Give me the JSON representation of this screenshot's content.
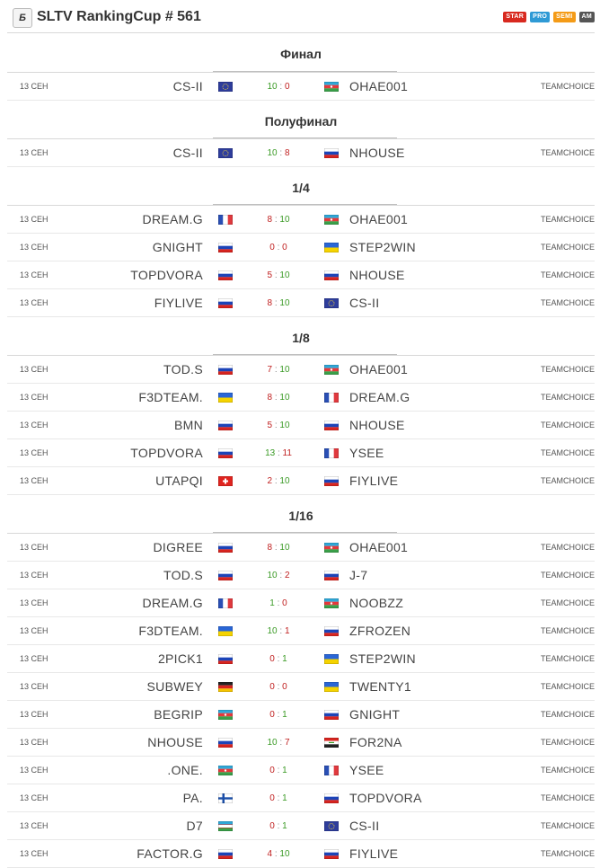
{
  "header": {
    "logo": "Б",
    "title": "SLTV RankingCup # 561",
    "badges": [
      "STAR",
      "PRO",
      "SEMI",
      "AM"
    ]
  },
  "stages": [
    {
      "name": "Финал",
      "matches": [
        {
          "date": "13 СЕН",
          "team1": "CS-II",
          "flag1": "eu",
          "s1": "10",
          "s2": "0",
          "flag2": "az",
          "team2": "OHAE001",
          "source": "TEAMCHOICE"
        }
      ]
    },
    {
      "name": "Полуфинал",
      "matches": [
        {
          "date": "13 СЕН",
          "team1": "CS-II",
          "flag1": "eu",
          "s1": "10",
          "s2": "8",
          "flag2": "ru",
          "team2": "NHOUSE",
          "source": "TEAMCHOICE"
        }
      ]
    },
    {
      "name": "1/4",
      "matches": [
        {
          "date": "13 СЕН",
          "team1": "DREAM.G",
          "flag1": "fr",
          "s1": "8",
          "s2": "10",
          "flag2": "az",
          "team2": "OHAE001",
          "source": "TEAMCHOICE"
        },
        {
          "date": "13 СЕН",
          "team1": "GNIGHT",
          "flag1": "ru",
          "s1": "0",
          "s2": "0",
          "flag2": "ua",
          "team2": "STEP2WIN",
          "source": "TEAMCHOICE"
        },
        {
          "date": "13 СЕН",
          "team1": "TOPDVORA",
          "flag1": "ru",
          "s1": "5",
          "s2": "10",
          "flag2": "ru",
          "team2": "NHOUSE",
          "source": "TEAMCHOICE"
        },
        {
          "date": "13 СЕН",
          "team1": "FIYLIVE",
          "flag1": "ru",
          "s1": "8",
          "s2": "10",
          "flag2": "eu",
          "team2": "CS-II",
          "source": "TEAMCHOICE"
        }
      ]
    },
    {
      "name": "1/8",
      "matches": [
        {
          "date": "13 СЕН",
          "team1": "TOD.S",
          "flag1": "ru",
          "s1": "7",
          "s2": "10",
          "flag2": "az",
          "team2": "OHAE001",
          "source": "TEAMCHOICE"
        },
        {
          "date": "13 СЕН",
          "team1": "F3DTEAM.",
          "flag1": "ua",
          "s1": "8",
          "s2": "10",
          "flag2": "fr",
          "team2": "DREAM.G",
          "source": "TEAMCHOICE"
        },
        {
          "date": "13 СЕН",
          "team1": "BMN",
          "flag1": "ru",
          "s1": "5",
          "s2": "10",
          "flag2": "ru",
          "team2": "NHOUSE",
          "source": "TEAMCHOICE"
        },
        {
          "date": "13 СЕН",
          "team1": "TOPDVORA",
          "flag1": "ru",
          "s1": "13",
          "s2": "11",
          "flag2": "fr",
          "team2": "YSEE",
          "source": "TEAMCHOICE"
        },
        {
          "date": "13 СЕН",
          "team1": "UTAPQI",
          "flag1": "ch",
          "s1": "2",
          "s2": "10",
          "flag2": "ru",
          "team2": "FIYLIVE",
          "source": "TEAMCHOICE"
        }
      ]
    },
    {
      "name": "1/16",
      "matches": [
        {
          "date": "13 СЕН",
          "team1": "DIGREE",
          "flag1": "ru",
          "s1": "8",
          "s2": "10",
          "flag2": "az",
          "team2": "OHAE001",
          "source": "TEAMCHOICE"
        },
        {
          "date": "13 СЕН",
          "team1": "TOD.S",
          "flag1": "ru",
          "s1": "10",
          "s2": "2",
          "flag2": "ru",
          "team2": "J-7",
          "source": "TEAMCHOICE"
        },
        {
          "date": "13 СЕН",
          "team1": "DREAM.G",
          "flag1": "fr",
          "s1": "1",
          "s2": "0",
          "flag2": "az",
          "team2": "NOOBZZ",
          "source": "TEAMCHOICE"
        },
        {
          "date": "13 СЕН",
          "team1": "F3DTEAM.",
          "flag1": "ua",
          "s1": "10",
          "s2": "1",
          "flag2": "ru",
          "team2": "ZFROZEN",
          "source": "TEAMCHOICE"
        },
        {
          "date": "13 СЕН",
          "team1": "2PICK1",
          "flag1": "ru",
          "s1": "0",
          "s2": "1",
          "flag2": "ua",
          "team2": "STEP2WIN",
          "source": "TEAMCHOICE"
        },
        {
          "date": "13 СЕН",
          "team1": "SUBWEY",
          "flag1": "de",
          "s1": "0",
          "s2": "0",
          "flag2": "ua",
          "team2": "TWENTY1",
          "source": "TEAMCHOICE"
        },
        {
          "date": "13 СЕН",
          "team1": "BEGRIP",
          "flag1": "az",
          "s1": "0",
          "s2": "1",
          "flag2": "ru",
          "team2": "GNIGHT",
          "source": "TEAMCHOICE"
        },
        {
          "date": "13 СЕН",
          "team1": "NHOUSE",
          "flag1": "ru",
          "s1": "10",
          "s2": "7",
          "flag2": "iq",
          "team2": "FOR2NA",
          "source": "TEAMCHOICE"
        },
        {
          "date": "13 СЕН",
          "team1": ".ONE.",
          "flag1": "az",
          "s1": "0",
          "s2": "1",
          "flag2": "fr",
          "team2": "YSEE",
          "source": "TEAMCHOICE"
        },
        {
          "date": "13 СЕН",
          "team1": "PA.",
          "flag1": "fi",
          "s1": "0",
          "s2": "1",
          "flag2": "ru",
          "team2": "TOPDVORA",
          "source": "TEAMCHOICE"
        },
        {
          "date": "13 СЕН",
          "team1": "D7",
          "flag1": "uz",
          "s1": "0",
          "s2": "1",
          "flag2": "eu",
          "team2": "CS-II",
          "source": "TEAMCHOICE"
        },
        {
          "date": "13 СЕН",
          "team1": "FACTOR.G",
          "flag1": "ru",
          "s1": "4",
          "s2": "10",
          "flag2": "ru",
          "team2": "FIYLIVE",
          "source": "TEAMCHOICE"
        }
      ]
    }
  ],
  "colors": {
    "win": "#3a9a25",
    "lose": "#c02020"
  }
}
